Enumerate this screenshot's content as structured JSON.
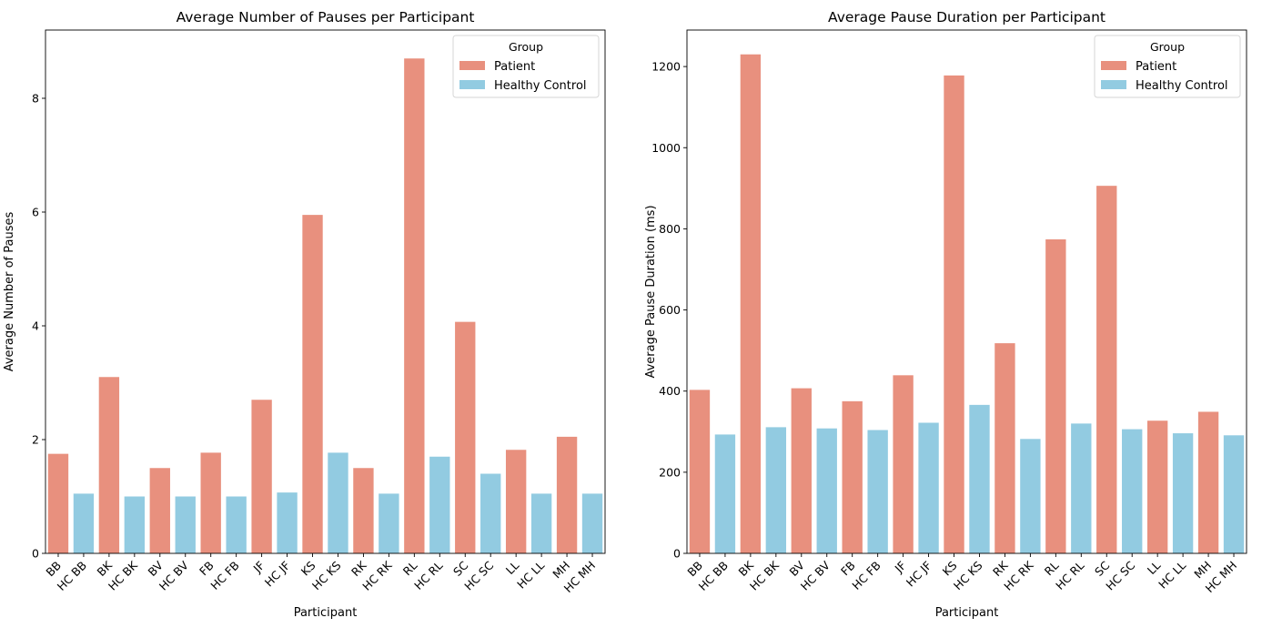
{
  "colors": {
    "patient": "#E8907E",
    "healthy_control": "#92CBE1"
  },
  "legend": {
    "title": "Group",
    "entries": [
      "Patient",
      "Healthy Control"
    ],
    "placement": "upper right"
  },
  "xlabel": "Participant",
  "chart_data": [
    {
      "type": "bar",
      "title": "Average Number of Pauses per Participant",
      "xlabel": "Participant",
      "ylabel": "Average Number of Pauses",
      "ylim": [
        0,
        9.2
      ],
      "yticks": [
        0,
        2,
        4,
        6,
        8
      ],
      "grid": false,
      "categories": [
        "BB",
        "HC BB",
        "BK",
        "HC BK",
        "BV",
        "HC BV",
        "FB",
        "HC FB",
        "JF",
        "HC JF",
        "KS",
        "HC KS",
        "RK",
        "HC RK",
        "RL",
        "HC RL",
        "SC",
        "HC SC",
        "LL",
        "HC LL",
        "MH",
        "HC MH"
      ],
      "groups": [
        "Patient",
        "Healthy Control",
        "Patient",
        "Healthy Control",
        "Patient",
        "Healthy Control",
        "Patient",
        "Healthy Control",
        "Patient",
        "Healthy Control",
        "Patient",
        "Healthy Control",
        "Patient",
        "Healthy Control",
        "Patient",
        "Healthy Control",
        "Patient",
        "Healthy Control",
        "Patient",
        "Healthy Control",
        "Patient",
        "Healthy Control"
      ],
      "values": [
        1.75,
        1.05,
        3.1,
        1.0,
        1.5,
        1.0,
        1.77,
        1.0,
        2.7,
        1.07,
        5.95,
        1.77,
        1.5,
        1.05,
        8.7,
        1.7,
        4.07,
        1.4,
        1.82,
        1.05,
        2.05,
        1.05
      ]
    },
    {
      "type": "bar",
      "title": "Average Pause Duration per Participant",
      "xlabel": "Participant",
      "ylabel": "Average Pause Duration (ms)",
      "ylim": [
        0,
        1290
      ],
      "yticks": [
        0,
        200,
        400,
        600,
        800,
        1000,
        1200
      ],
      "grid": false,
      "categories": [
        "BB",
        "HC BB",
        "BK",
        "HC BK",
        "BV",
        "HC BV",
        "FB",
        "HC FB",
        "JF",
        "HC JF",
        "KS",
        "HC KS",
        "RK",
        "HC RK",
        "RL",
        "HC RL",
        "SC",
        "HC SC",
        "LL",
        "HC LL",
        "MH",
        "HC MH"
      ],
      "groups": [
        "Patient",
        "Healthy Control",
        "Patient",
        "Healthy Control",
        "Patient",
        "Healthy Control",
        "Patient",
        "Healthy Control",
        "Patient",
        "Healthy Control",
        "Patient",
        "Healthy Control",
        "Patient",
        "Healthy Control",
        "Patient",
        "Healthy Control",
        "Patient",
        "Healthy Control",
        "Patient",
        "Healthy Control",
        "Patient",
        "Healthy Control"
      ],
      "values": [
        403,
        293,
        1230,
        311,
        407,
        308,
        375,
        304,
        439,
        322,
        1178,
        366,
        518,
        282,
        774,
        320,
        906,
        306,
        327,
        296,
        349,
        291
      ]
    }
  ]
}
